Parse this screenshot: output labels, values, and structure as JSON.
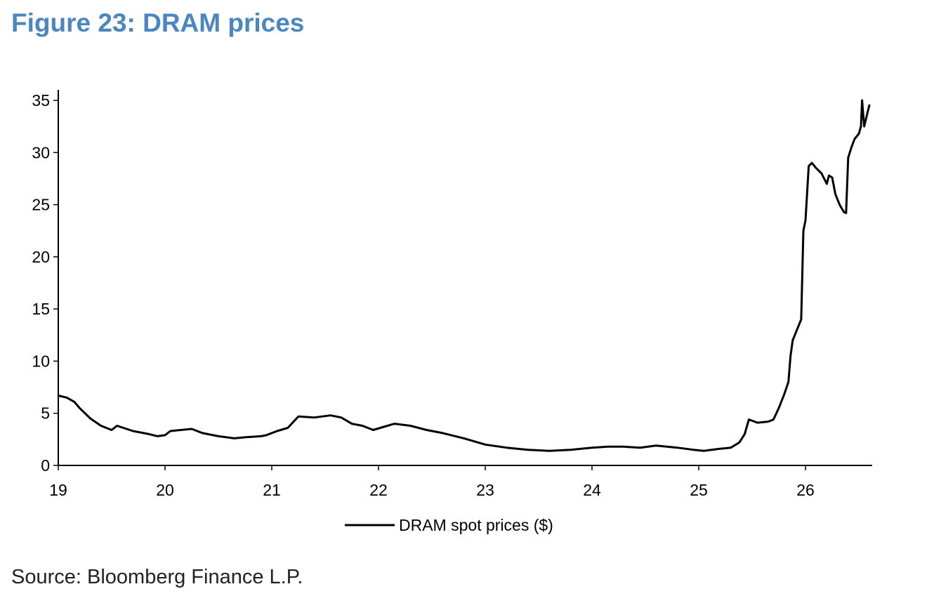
{
  "title": "Figure 23: DRAM prices",
  "source": "Source: Bloomberg Finance L.P.",
  "chart_data": {
    "type": "line",
    "title": "Figure 23: DRAM prices",
    "xlabel": "",
    "ylabel": "",
    "xlim": [
      19,
      26.6
    ],
    "ylim": [
      0,
      35
    ],
    "x_ticks": [
      "19",
      "20",
      "21",
      "22",
      "23",
      "24",
      "25",
      "26"
    ],
    "y_ticks": [
      "0",
      "5",
      "10",
      "15",
      "20",
      "25",
      "30",
      "35"
    ],
    "grid": false,
    "legend": "bottom-center",
    "series": [
      {
        "name": "DRAM spot prices ($)",
        "color": "#000000",
        "x": [
          19.0,
          19.08,
          19.15,
          19.2,
          19.3,
          19.4,
          19.5,
          19.55,
          19.7,
          19.85,
          19.93,
          20.0,
          20.05,
          20.15,
          20.25,
          20.35,
          20.5,
          20.65,
          20.75,
          20.9,
          20.95,
          21.05,
          21.15,
          21.25,
          21.4,
          21.55,
          21.65,
          21.75,
          21.85,
          21.95,
          22.05,
          22.15,
          22.3,
          22.45,
          22.6,
          22.8,
          23.0,
          23.2,
          23.4,
          23.6,
          23.8,
          24.0,
          24.15,
          24.3,
          24.45,
          24.6,
          24.8,
          24.95,
          25.05,
          25.2,
          25.3,
          25.38,
          25.43,
          25.47,
          25.55,
          25.65,
          25.7,
          25.75,
          25.8,
          25.84,
          25.86,
          25.88,
          25.92,
          25.96,
          25.98,
          26.0,
          26.03,
          26.06,
          26.1,
          26.15,
          26.2,
          26.22,
          26.25,
          26.28,
          26.32,
          26.36,
          26.38,
          26.4,
          26.43,
          26.46,
          26.5,
          26.52,
          26.53,
          26.55,
          26.58,
          26.6
        ],
        "y": [
          6.7,
          6.5,
          6.1,
          5.5,
          4.5,
          3.8,
          3.4,
          3.8,
          3.3,
          3.0,
          2.8,
          2.9,
          3.3,
          3.4,
          3.5,
          3.1,
          2.8,
          2.6,
          2.7,
          2.8,
          2.9,
          3.3,
          3.6,
          4.7,
          4.6,
          4.8,
          4.6,
          4.0,
          3.8,
          3.4,
          3.7,
          4.0,
          3.8,
          3.4,
          3.1,
          2.6,
          2.0,
          1.7,
          1.5,
          1.4,
          1.5,
          1.7,
          1.8,
          1.8,
          1.7,
          1.9,
          1.7,
          1.5,
          1.4,
          1.6,
          1.7,
          2.2,
          3.0,
          4.4,
          4.1,
          4.2,
          4.4,
          5.5,
          6.8,
          8.0,
          10.5,
          12.0,
          13.0,
          14.0,
          22.5,
          23.5,
          28.7,
          29.0,
          28.5,
          28.0,
          27.0,
          27.8,
          27.6,
          26.0,
          25.0,
          24.3,
          24.2,
          29.5,
          30.5,
          31.3,
          31.8,
          32.5,
          35.0,
          32.5,
          33.8,
          34.6
        ]
      }
    ]
  }
}
